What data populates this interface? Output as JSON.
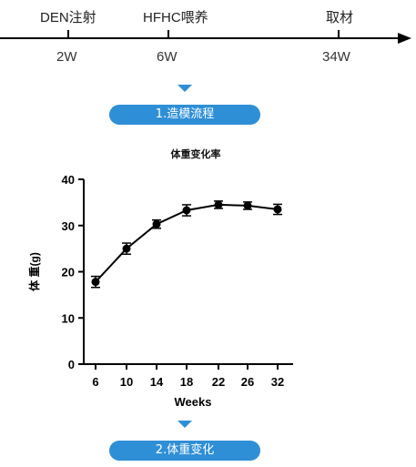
{
  "timeline": {
    "events": [
      {
        "label": "DEN注射",
        "week": "2W"
      },
      {
        "label": "HFHC喂养",
        "week": "6W"
      },
      {
        "label": "取材",
        "week": "34W"
      }
    ]
  },
  "steps": {
    "step1": "1.造模流程",
    "step2": "2.体重变化"
  },
  "colors": {
    "accent": "#2f8fd6",
    "line": "#000000"
  },
  "icons": {
    "step_arrow": "triangle-down-icon",
    "timeline_arrow": "arrow-right-icon"
  },
  "chart_data": {
    "type": "line",
    "title": "体重变化率",
    "xlabel": "Weeks",
    "ylabel": "体 重(g)",
    "x": [
      6,
      10,
      14,
      18,
      22,
      26,
      32
    ],
    "series": [
      {
        "values": [
          17.8,
          25.0,
          30.3,
          33.3,
          34.5,
          34.3,
          33.5
        ],
        "errors": [
          1.2,
          1.2,
          0.9,
          1.2,
          0.8,
          0.8,
          1.1
        ]
      }
    ],
    "ylim": [
      0,
      40
    ],
    "yticks": [
      0,
      10,
      20,
      30,
      40
    ],
    "grid": false,
    "legend": false
  }
}
